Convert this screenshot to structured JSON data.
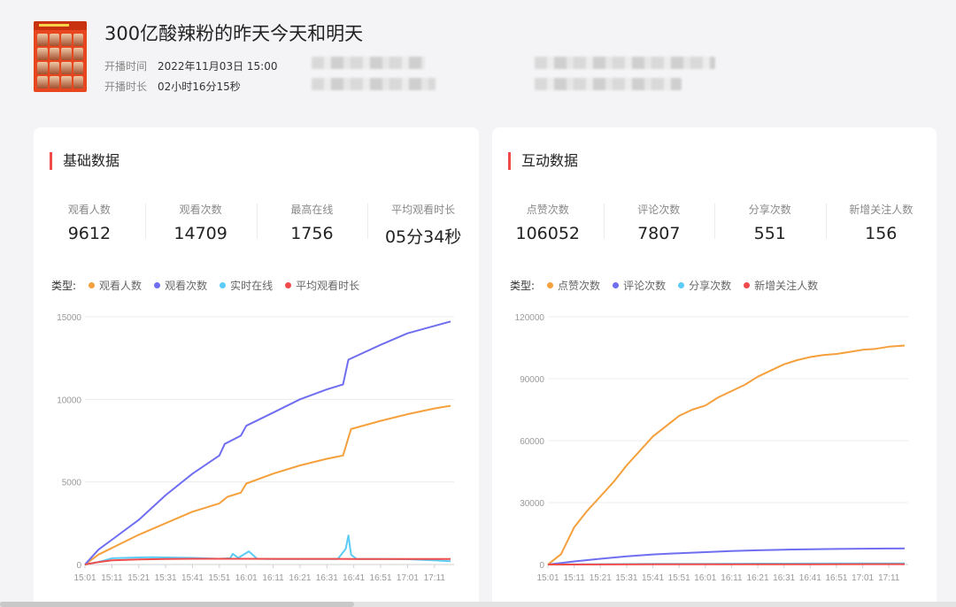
{
  "live": {
    "title": "300亿酸辣粉的昨天今天和明天",
    "start_label": "开播时间",
    "start_value": "2022年11月03日 15:00",
    "duration_label": "开播时长",
    "duration_value": "02小时16分15秒"
  },
  "basic": {
    "title": "基础数据",
    "stats": [
      {
        "label": "观看人数",
        "value": "9612"
      },
      {
        "label": "观看次数",
        "value": "14709"
      },
      {
        "label": "最高在线",
        "value": "1756"
      },
      {
        "label": "平均观看时长",
        "value": "05分34秒"
      }
    ],
    "legend_title": "类型:",
    "legend": [
      {
        "label": "观看人数",
        "color": "#f5a03c"
      },
      {
        "label": "观看次数",
        "color": "#6f6ef0"
      },
      {
        "label": "实时在线",
        "color": "#5ccbf5"
      },
      {
        "label": "平均观看时长",
        "color": "#ef4b4b"
      }
    ]
  },
  "interact": {
    "title": "互动数据",
    "stats": [
      {
        "label": "点赞次数",
        "value": "106052"
      },
      {
        "label": "评论次数",
        "value": "7807"
      },
      {
        "label": "分享次数",
        "value": "551"
      },
      {
        "label": "新增关注人数",
        "value": "156"
      }
    ],
    "legend_title": "类型:",
    "legend": [
      {
        "label": "点赞次数",
        "color": "#f5a03c"
      },
      {
        "label": "评论次数",
        "color": "#6f6ef0"
      },
      {
        "label": "分享次数",
        "color": "#5ccbf5"
      },
      {
        "label": "新增关注人数",
        "color": "#ef4b4b"
      }
    ]
  },
  "chart_data": [
    {
      "type": "line",
      "x": [
        "15:01",
        "15:11",
        "15:21",
        "15:31",
        "15:41",
        "15:51",
        "16:01",
        "16:11",
        "16:21",
        "16:31",
        "16:41",
        "16:51",
        "17:01",
        "17:11"
      ],
      "ylim": [
        0,
        15000
      ],
      "yticks": [
        "0",
        "5000",
        "10000",
        "15000"
      ],
      "series": [
        {
          "name": "观看人数",
          "color": "#f5a03c",
          "points": [
            [
              0,
              0
            ],
            [
              0.5,
              600
            ],
            [
              1,
              1000
            ],
            [
              2,
              1800
            ],
            [
              3,
              2500
            ],
            [
              4,
              3200
            ],
            [
              5,
              3700
            ],
            [
              5.3,
              4100
            ],
            [
              5.8,
              4350
            ],
            [
              6,
              4900
            ],
            [
              7,
              5500
            ],
            [
              8,
              6000
            ],
            [
              9,
              6400
            ],
            [
              9.6,
              6600
            ],
            [
              9.9,
              8200
            ],
            [
              11,
              8700
            ],
            [
              12,
              9100
            ],
            [
              13,
              9450
            ],
            [
              13.6,
              9612
            ]
          ]
        },
        {
          "name": "观看次数",
          "color": "#6f6ef0",
          "points": [
            [
              0,
              0
            ],
            [
              0.5,
              900
            ],
            [
              1,
              1500
            ],
            [
              2,
              2700
            ],
            [
              3,
              4200
            ],
            [
              4,
              5500
            ],
            [
              5,
              6600
            ],
            [
              5.2,
              7300
            ],
            [
              5.8,
              7800
            ],
            [
              6,
              8400
            ],
            [
              7,
              9200
            ],
            [
              8,
              10000
            ],
            [
              9,
              10600
            ],
            [
              9.6,
              10900
            ],
            [
              9.8,
              12400
            ],
            [
              11,
              13300
            ],
            [
              12,
              14000
            ],
            [
              13,
              14450
            ],
            [
              13.6,
              14709
            ]
          ]
        },
        {
          "name": "实时在线",
          "color": "#5ccbf5",
          "points": [
            [
              0,
              0
            ],
            [
              0.5,
              150
            ],
            [
              1,
              380
            ],
            [
              2,
              430
            ],
            [
              2.5,
              440
            ],
            [
              3,
              430
            ],
            [
              4,
              400
            ],
            [
              5,
              350
            ],
            [
              5.4,
              380
            ],
            [
              5.5,
              650
            ],
            [
              5.7,
              400
            ],
            [
              6.1,
              800
            ],
            [
              6.4,
              350
            ],
            [
              7,
              330
            ],
            [
              8,
              330
            ],
            [
              9,
              340
            ],
            [
              9.4,
              330
            ],
            [
              9.7,
              950
            ],
            [
              9.8,
              1756
            ],
            [
              9.9,
              600
            ],
            [
              10.1,
              340
            ],
            [
              11,
              330
            ],
            [
              12,
              320
            ],
            [
              13,
              250
            ],
            [
              13.6,
              200
            ]
          ]
        },
        {
          "name": "平均观看时长",
          "color": "#ef4b4b",
          "points": [
            [
              0,
              0
            ],
            [
              0.5,
              150
            ],
            [
              1,
              250
            ],
            [
              2,
              310
            ],
            [
              3,
              340
            ],
            [
              4,
              350
            ],
            [
              5,
              350
            ],
            [
              6,
              350
            ],
            [
              7,
              345
            ],
            [
              8,
              345
            ],
            [
              9,
              345
            ],
            [
              10,
              340
            ],
            [
              11,
              335
            ],
            [
              12,
              330
            ],
            [
              13,
              330
            ],
            [
              13.6,
              330
            ]
          ]
        }
      ]
    },
    {
      "type": "line",
      "x": [
        "15:01",
        "15:11",
        "15:21",
        "15:31",
        "15:41",
        "15:51",
        "16:01",
        "16:11",
        "16:21",
        "16:31",
        "16:41",
        "16:51",
        "17:01",
        "17:11"
      ],
      "ylim": [
        0,
        120000
      ],
      "yticks": [
        "0",
        "30000",
        "60000",
        "90000",
        "120000"
      ],
      "series": [
        {
          "name": "点赞次数",
          "color": "#f5a03c",
          "points": [
            [
              0,
              0
            ],
            [
              0.5,
              5000
            ],
            [
              1,
              18000
            ],
            [
              1.5,
              26000
            ],
            [
              2,
              33000
            ],
            [
              2.5,
              40000
            ],
            [
              3,
              48000
            ],
            [
              3.5,
              55000
            ],
            [
              4,
              62000
            ],
            [
              4.5,
              67000
            ],
            [
              5,
              72000
            ],
            [
              5.5,
              75000
            ],
            [
              6,
              77000
            ],
            [
              6.5,
              81000
            ],
            [
              7,
              84000
            ],
            [
              7.5,
              87000
            ],
            [
              8,
              91000
            ],
            [
              8.5,
              94000
            ],
            [
              9,
              97000
            ],
            [
              9.5,
              99000
            ],
            [
              10,
              100500
            ],
            [
              10.5,
              101500
            ],
            [
              11,
              102000
            ],
            [
              11.5,
              103000
            ],
            [
              12,
              104000
            ],
            [
              12.5,
              104500
            ],
            [
              13,
              105500
            ],
            [
              13.6,
              106052
            ]
          ]
        },
        {
          "name": "评论次数",
          "color": "#6f6ef0",
          "points": [
            [
              0,
              0
            ],
            [
              1,
              1500
            ],
            [
              2,
              2800
            ],
            [
              3,
              4000
            ],
            [
              4,
              4900
            ],
            [
              5,
              5500
            ],
            [
              6,
              6000
            ],
            [
              7,
              6500
            ],
            [
              8,
              6900
            ],
            [
              9,
              7200
            ],
            [
              10,
              7400
            ],
            [
              11,
              7550
            ],
            [
              12,
              7650
            ],
            [
              13,
              7750
            ],
            [
              13.6,
              7807
            ]
          ]
        },
        {
          "name": "分享次数",
          "color": "#5ccbf5",
          "points": [
            [
              0,
              0
            ],
            [
              2,
              150
            ],
            [
              4,
              280
            ],
            [
              6,
              360
            ],
            [
              8,
              430
            ],
            [
              10,
              480
            ],
            [
              12,
              520
            ],
            [
              13.6,
              551
            ]
          ]
        },
        {
          "name": "新增关注人数",
          "color": "#ef4b4b",
          "points": [
            [
              0,
              0
            ],
            [
              2,
              40
            ],
            [
              4,
              80
            ],
            [
              6,
              105
            ],
            [
              8,
              125
            ],
            [
              10,
              140
            ],
            [
              12,
              150
            ],
            [
              13.6,
              156
            ]
          ]
        }
      ]
    }
  ]
}
